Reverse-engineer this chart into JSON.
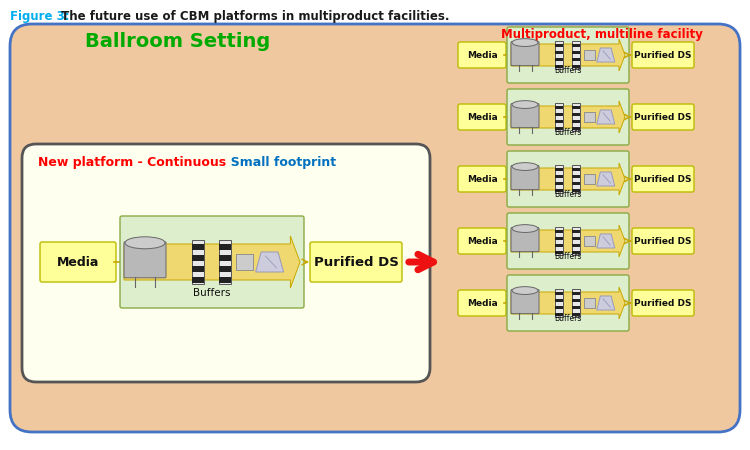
{
  "title_fig3": "Figure 3:",
  "title_rest": " The future use of CBM platforms in multiproduct facilities.",
  "title_color_fig3": "#00AEEF",
  "title_color_rest": "#1A1A1A",
  "bg_outer": "#F0C8A0",
  "bg_inner_yellow": "#FFFFF0",
  "bg_inner_green": "#E8F8D8",
  "border_outer": "#4472C4",
  "border_inner": "#333333",
  "ballroom_text": "Ballroom Setting",
  "ballroom_color": "#00AA00",
  "new_platform_text": "New platform - Continuous",
  "new_platform_color": "#FF0000",
  "small_footprint_text": "  Small footprint",
  "small_footprint_color": "#0070C0",
  "multiproduct_text": "Multiproduct, multiline facility",
  "multiproduct_color": "#FF0000",
  "media_label": "Media",
  "buffers_label": "Buffers",
  "purified_label": "Purified DS",
  "box_fill": "#FFFF99",
  "box_edge": "#BBBB00",
  "green_fill": "#DDEECC",
  "green_edge": "#88AA44",
  "arrow_fill": "#F0D870",
  "arrow_edge": "#C8A800",
  "red_arrow_color": "#EE1111",
  "fig_width": 7.5,
  "fig_height": 4.5
}
